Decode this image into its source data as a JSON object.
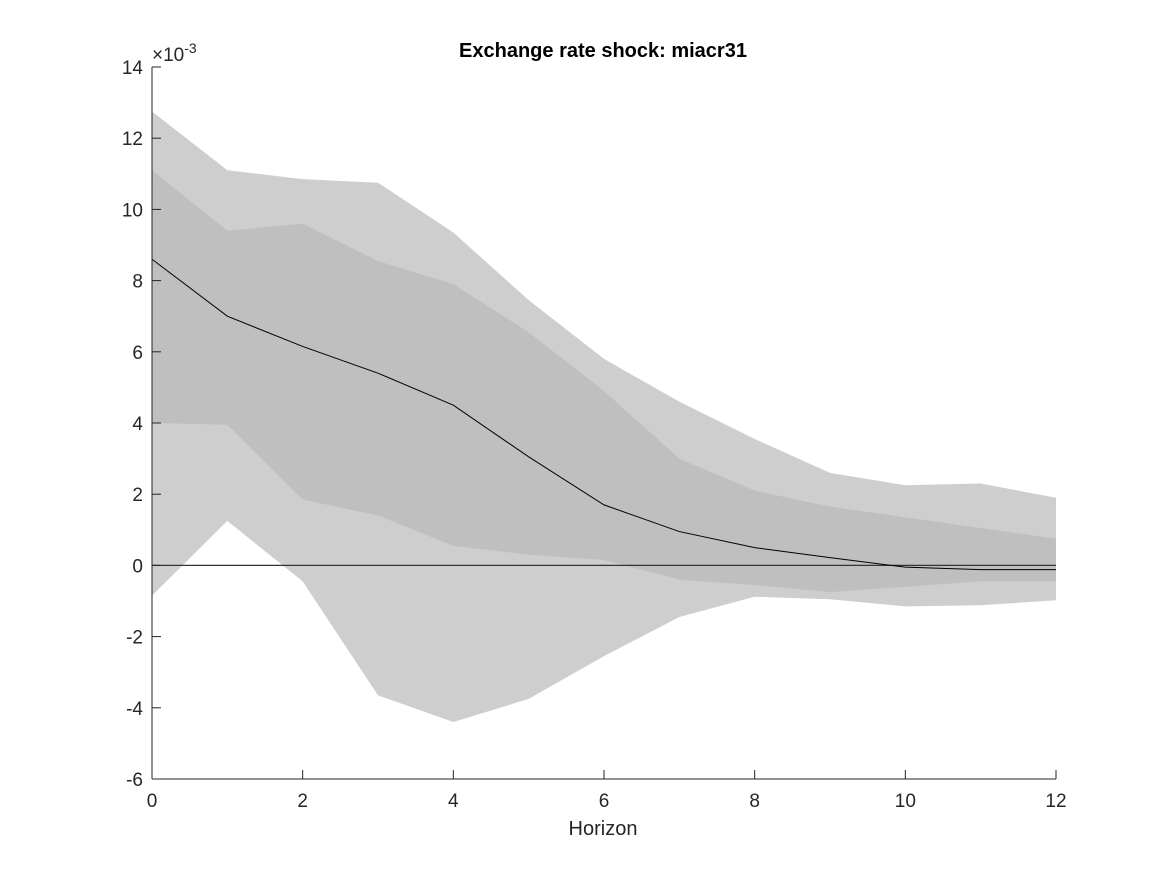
{
  "chart_data": {
    "type": "area",
    "title": "Exchange rate shock: miacr31",
    "xlabel": "Horizon",
    "ylabel": "",
    "y_exponent_label": "×10",
    "y_exponent_power": "-3",
    "xlim": [
      0,
      12
    ],
    "ylim": [
      -6,
      14
    ],
    "x": [
      0,
      1,
      2,
      3,
      4,
      5,
      6,
      7,
      8,
      9,
      10,
      11,
      12
    ],
    "x_ticks": [
      0,
      2,
      4,
      6,
      8,
      10,
      12
    ],
    "y_ticks": [
      -6,
      -4,
      -2,
      0,
      2,
      4,
      6,
      8,
      10,
      12,
      14
    ],
    "bands": [
      {
        "lower": [
          -0.85,
          1.25,
          -0.45,
          -3.65,
          -4.4,
          -3.75,
          -2.55,
          -1.45,
          -0.88,
          -0.95,
          -1.15,
          -1.12,
          -0.98
        ],
        "upper": [
          12.75,
          11.1,
          10.85,
          10.75,
          9.35,
          7.45,
          5.8,
          4.6,
          3.55,
          2.6,
          2.25,
          2.3,
          1.9
        ],
        "color": "#cecece"
      },
      {
        "lower": [
          4.0,
          3.95,
          1.85,
          1.4,
          0.55,
          0.3,
          0.15,
          -0.4,
          -0.55,
          -0.75,
          -0.6,
          -0.45,
          -0.45
        ],
        "upper": [
          11.1,
          9.4,
          9.6,
          8.55,
          7.9,
          6.55,
          4.9,
          3.0,
          2.1,
          1.65,
          1.35,
          1.05,
          0.75
        ],
        "color": "#bfbfbf"
      }
    ],
    "series": [
      {
        "values": [
          8.6,
          7.0,
          6.15,
          5.4,
          4.5,
          3.05,
          1.7,
          0.95,
          0.5,
          0.22,
          -0.05,
          -0.12,
          -0.12
        ],
        "color": "#000000"
      }
    ],
    "reference_line": {
      "y": 0,
      "color": "#333333"
    },
    "grid": false
  }
}
